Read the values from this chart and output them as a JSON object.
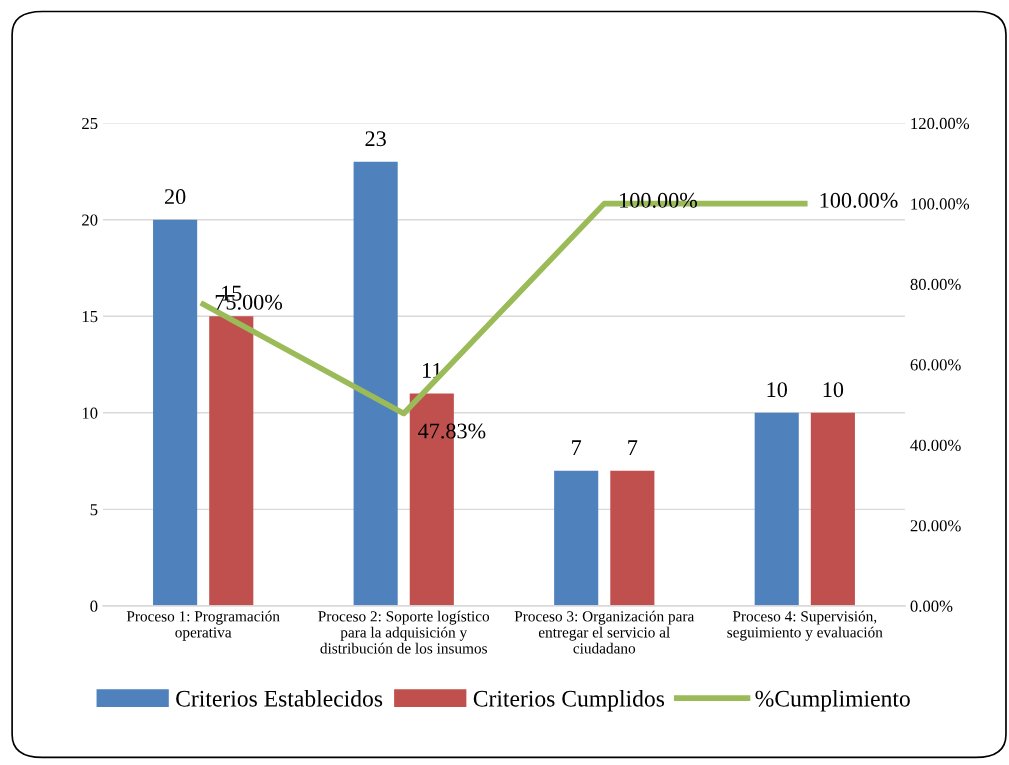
{
  "chart_data": {
    "type": "bar",
    "categories": [
      "Proceso 1: Programación\noperativa",
      "Proceso 2: Soporte logístico\npara la adquisición y\ndistribución de los insumos",
      "Proceso 3: Organización para\nentregar el servicio al\nciudadano",
      "Proceso 4: Supervisión,\nseguimiento y evaluación"
    ],
    "series": [
      {
        "name": "Criterios Establecidos",
        "color": "#4f81bd",
        "values": [
          20,
          23,
          7,
          10
        ]
      },
      {
        "name": "Criterios Cumplidos",
        "color": "#c0504d",
        "values": [
          15,
          11,
          7,
          10
        ]
      },
      {
        "name": "%Cumplimiento",
        "type": "line",
        "axis": "y2",
        "color": "#9bbb59",
        "values": [
          75.0,
          47.83,
          100.0,
          100.0
        ],
        "value_labels": [
          "75.00%",
          "47.83%",
          "100.00%",
          "100.00%"
        ]
      }
    ],
    "data_labels": true,
    "ylim": [
      0,
      25
    ],
    "yticks": [
      0,
      5,
      10,
      15,
      20,
      25
    ],
    "y2lim": [
      0,
      120
    ],
    "y2ticks": [
      {
        "value": 0,
        "label": "0.00%"
      },
      {
        "value": 20,
        "label": "20.00%"
      },
      {
        "value": 40,
        "label": "40.00%"
      },
      {
        "value": 60,
        "label": "60.00%"
      },
      {
        "value": 80,
        "label": "80.00%"
      },
      {
        "value": 100,
        "label": "100.00%"
      },
      {
        "value": 120,
        "label": "120.00%"
      }
    ],
    "grid": "y",
    "legend": "bottom",
    "marker": "none",
    "line_style": "solid"
  }
}
